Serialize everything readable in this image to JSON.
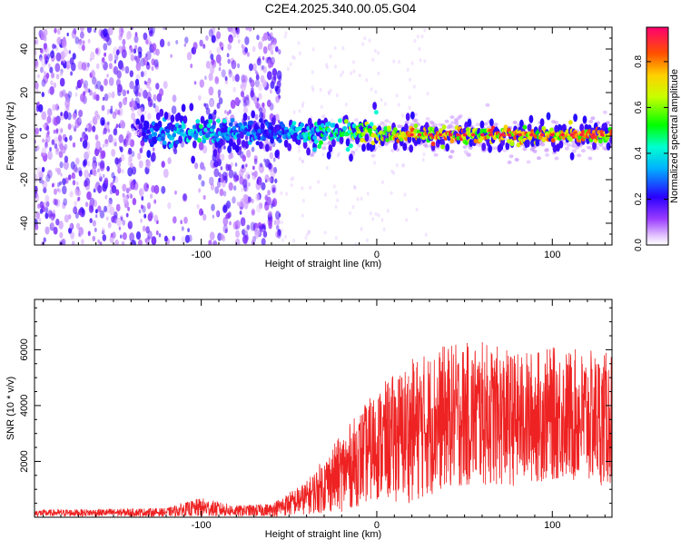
{
  "figure": {
    "title": "C2E4.2025.340.00.05.G04"
  },
  "chart_data": [
    {
      "type": "heatmap",
      "xlabel": "Height of straight line (km)",
      "ylabel": "Frequency (Hz)",
      "xlim": [
        -195,
        134
      ],
      "ylim": [
        -50,
        50
      ],
      "xticks": [
        -100,
        0,
        100
      ],
      "yticks": [
        -40,
        -20,
        0,
        20,
        40
      ],
      "colorbar": {
        "label": "Normalized spectral amplitude",
        "range": [
          0,
          0.95
        ],
        "ticks": [
          0.0,
          0.2,
          0.4,
          0.6,
          0.8
        ]
      },
      "ridge": {
        "frequency": 0,
        "description_points": [
          {
            "x": -130,
            "amp": 0.35
          },
          {
            "x": -100,
            "amp": 0.5
          },
          {
            "x": -60,
            "amp": 0.3
          },
          {
            "x": -40,
            "amp": 0.5
          },
          {
            "x": 0,
            "amp": 0.75
          },
          {
            "x": 20,
            "amp": 0.9
          },
          {
            "x": 130,
            "amp": 0.9
          }
        ]
      }
    },
    {
      "type": "line",
      "xlabel": "Height of straight line (km)",
      "ylabel": "SNR (10 * v/v)",
      "xlim": [
        -195,
        134
      ],
      "ylim": [
        0,
        7800
      ],
      "xticks": [
        -100,
        0,
        100
      ],
      "yticks": [
        2000,
        4000,
        6000
      ],
      "color": "#ee2222",
      "envelope": [
        {
          "x": -195,
          "mean": 150,
          "spread": 120
        },
        {
          "x": -120,
          "mean": 180,
          "spread": 150
        },
        {
          "x": -100,
          "mean": 350,
          "spread": 350
        },
        {
          "x": -80,
          "mean": 220,
          "spread": 200
        },
        {
          "x": -60,
          "mean": 250,
          "spread": 250
        },
        {
          "x": -40,
          "mean": 700,
          "spread": 600
        },
        {
          "x": -20,
          "mean": 1600,
          "spread": 1400
        },
        {
          "x": 0,
          "mean": 2600,
          "spread": 2000
        },
        {
          "x": 20,
          "mean": 3100,
          "spread": 2600
        },
        {
          "x": 40,
          "mean": 3600,
          "spread": 2600
        },
        {
          "x": 60,
          "mean": 3700,
          "spread": 2600
        },
        {
          "x": 80,
          "mean": 3500,
          "spread": 2400
        },
        {
          "x": 100,
          "mean": 3700,
          "spread": 2400
        },
        {
          "x": 134,
          "mean": 3500,
          "spread": 2400
        }
      ]
    }
  ]
}
